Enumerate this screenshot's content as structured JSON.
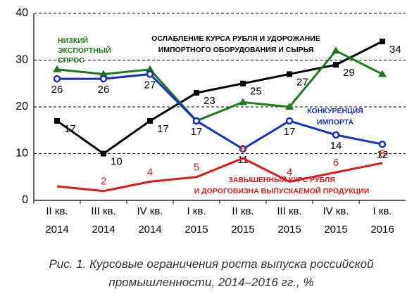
{
  "chart_data": {
    "type": "line",
    "categories": [
      "II кв.\n2014",
      "III кв.\n2014",
      "IV кв.\n2014",
      "I кв.\n2015",
      "II кв.\n2015",
      "III кв.\n2015",
      "IV кв.\n2015",
      "I кв.\n2016"
    ],
    "ylim": [
      0,
      40
    ],
    "yticks": [
      0,
      10,
      20,
      30,
      40
    ],
    "grid": true,
    "series": [
      {
        "name": "ОСЛАБЛЕНИЕ КУРСА  РУБЛЯ И УДОРОЖАНИЕ\nИМПОРТНОГО  ОБОРУДОВАНИЯ И СЫРЬЯ",
        "color": "#000000",
        "marker": "square",
        "values": [
          17,
          10,
          17,
          23,
          25,
          27,
          29,
          34
        ]
      },
      {
        "name": "НИЗКИЙ\nЭКСПОРТНЫЙ\nСПРОС",
        "color": "#1f7a1f",
        "marker": "triangle",
        "labels": false,
        "values": [
          28,
          27,
          28,
          17,
          21,
          20,
          32,
          27
        ]
      },
      {
        "name": "КОНКУРЕНЦИЯ\nИМПОРТА",
        "color": "#1530c0",
        "marker": "circle",
        "values": [
          26,
          26,
          27,
          17,
          11,
          17,
          14,
          12
        ]
      },
      {
        "name": "ЗАВЫШЕННЫЙ КУРС РУБЛЯ\nИ ДОРОГОВИЗНА ВЫПУСКАЕМОЙ ПРОДУКЦИИ",
        "color": "#dd1a1a",
        "marker": "none",
        "values": [
          3,
          2,
          4,
          5,
          9,
          4,
          6,
          8
        ],
        "value_labels": [
          null,
          "2",
          "4",
          "5",
          "9",
          "4",
          "6",
          "8"
        ]
      }
    ],
    "caption": "Рис. 1. Курсовые ограничения роста выпуска российской\nпромышленности, 2014–2016 гг., %"
  }
}
